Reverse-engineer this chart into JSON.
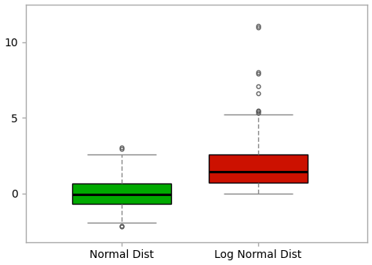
{
  "categories": [
    "Normal Dist",
    "Log Normal Dist"
  ],
  "box1": {
    "median": -0.05,
    "q1": -0.67,
    "q3": 0.67,
    "whisker_low": -1.9,
    "whisker_high": 2.6,
    "outliers_low": [
      -2.15,
      -2.2
    ],
    "outliers_high": [
      2.95,
      3.05
    ]
  },
  "box2": {
    "median": 1.45,
    "q1": 0.7,
    "q3": 2.6,
    "whisker_low": 0.02,
    "whisker_high": 5.25,
    "outliers": [
      5.35,
      5.42,
      5.48,
      6.6,
      7.1,
      7.9,
      8.0,
      11.0,
      11.1
    ]
  },
  "box1_color": "#00AA00",
  "box2_color": "#CC1100",
  "median_color": "#000000",
  "whisker_color": "#888888",
  "cap_color": "#888888",
  "outlier_color": "#555555",
  "background_color": "#FFFFFF",
  "border_color": "#AAAAAA",
  "yticks": [
    0,
    5,
    10
  ],
  "ylim": [
    -3.2,
    12.5
  ],
  "xlim": [
    0.3,
    2.8
  ],
  "figsize": [
    4.74,
    3.38
  ],
  "dpi": 100,
  "font_family": "sans-serif",
  "box_width": 0.72,
  "cap_ratio": 0.7
}
